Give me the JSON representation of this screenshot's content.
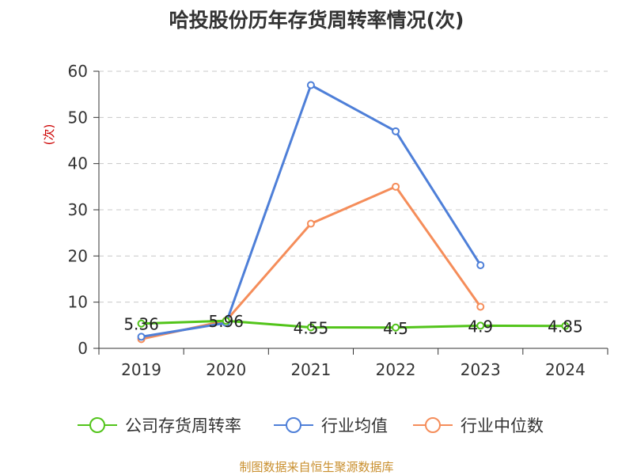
{
  "title": "哈投股份历年存货周转率情况(次)",
  "source": "制图数据来自恒生聚源数据库",
  "chart_data": {
    "type": "line",
    "title": "哈投股份历年存货周转率情况(次)",
    "ylabel": "(次)",
    "xlabel": "",
    "categories": [
      "2019",
      "2020",
      "2021",
      "2022",
      "2023",
      "2024"
    ],
    "ylim": [
      0,
      60
    ],
    "yticks": [
      0,
      10,
      20,
      30,
      40,
      50,
      60
    ],
    "grid": true,
    "legend_position": "bottom",
    "series": [
      {
        "name": "公司存货周转率",
        "color": "#52c41a",
        "values": [
          5.36,
          5.96,
          4.55,
          4.5,
          4.9,
          4.85
        ],
        "labels": [
          "5.36",
          "5.96",
          "4.55",
          "4.5",
          "4.9",
          "4.85"
        ]
      },
      {
        "name": "行业均值",
        "color": "#4e7fd8",
        "values": [
          2.5,
          5.5,
          57,
          47,
          18,
          null
        ]
      },
      {
        "name": "行业中位数",
        "color": "#f58d5a",
        "values": [
          2.0,
          6.0,
          27,
          35,
          9,
          null
        ]
      }
    ]
  }
}
